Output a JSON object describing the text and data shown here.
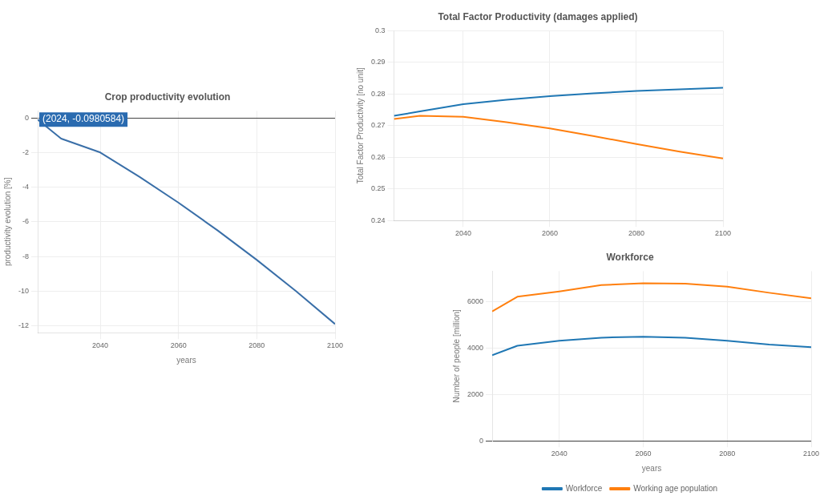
{
  "chart_data": [
    {
      "type": "line",
      "title": "Total Factor Productivity (damages applied)",
      "ylabel": "Total Factor Productivity [no unit]",
      "x": [
        2024,
        2030,
        2040,
        2050,
        2060,
        2070,
        2080,
        2090,
        2100
      ],
      "series": [
        {
          "color": "#1f77b4",
          "values": [
            0.2731,
            0.2745,
            0.2768,
            0.2782,
            0.2793,
            0.2802,
            0.281,
            0.2815,
            0.282
          ]
        },
        {
          "color": "#ff7f0e",
          "values": [
            0.2721,
            0.2731,
            0.2728,
            0.2711,
            0.2691,
            0.2667,
            0.2642,
            0.2618,
            0.2596
          ]
        }
      ],
      "xlim": [
        2024,
        2100
      ],
      "xticks": [
        2040,
        2060,
        2080,
        2100
      ],
      "ylim": [
        0.24,
        0.3
      ],
      "yticks": [
        0.3,
        0.29,
        0.28,
        0.27,
        0.26,
        0.25,
        0.24
      ],
      "grid": true,
      "legend": false,
      "marker": "none",
      "line_style": "solid"
    },
    {
      "type": "line",
      "title": "Crop productivity evolution",
      "xlabel": "years",
      "ylabel": "productivity evolution [%]",
      "x": [
        2024,
        2030,
        2040,
        2050,
        2060,
        2070,
        2080,
        2090,
        2100
      ],
      "series": [
        {
          "color": "#3a6fa8",
          "values": [
            -0.1,
            -1.2,
            -2.0,
            -3.4,
            -4.9,
            -6.5,
            -8.2,
            -10.0,
            -11.9
          ]
        }
      ],
      "xlim": [
        2024,
        2100
      ],
      "xticks": [
        2040,
        2060,
        2080,
        2100
      ],
      "ylim": [
        -12.4,
        0.4
      ],
      "yticks": [
        0,
        -2,
        -4,
        -6,
        -8,
        -10,
        -12
      ],
      "grid": true,
      "legend": false,
      "marker": "none",
      "line_style": "solid",
      "annotations": [
        {
          "text": "(2024, -0.0980584)",
          "x": 2024,
          "y": -0.0980584
        }
      ]
    },
    {
      "type": "line",
      "title": "Workforce",
      "xlabel": "years",
      "ylabel": "Number of people [million]",
      "x": [
        2024,
        2030,
        2040,
        2050,
        2060,
        2070,
        2080,
        2090,
        2100
      ],
      "series": [
        {
          "name": "Workforce",
          "color": "#1f77b4",
          "values": [
            3680,
            4090,
            4310,
            4440,
            4480,
            4440,
            4310,
            4140,
            4030
          ]
        },
        {
          "name": "Working age population",
          "color": "#ff7f0e",
          "values": [
            5570,
            6200,
            6430,
            6700,
            6780,
            6760,
            6630,
            6370,
            6130
          ]
        }
      ],
      "xlim": [
        2024,
        2100
      ],
      "xticks": [
        2040,
        2060,
        2080,
        2100
      ],
      "ylim": [
        0,
        7300
      ],
      "yticks": [
        0,
        2000,
        4000,
        6000
      ],
      "grid": true,
      "legend": "bottom",
      "marker": "none",
      "line_style": "solid"
    }
  ]
}
